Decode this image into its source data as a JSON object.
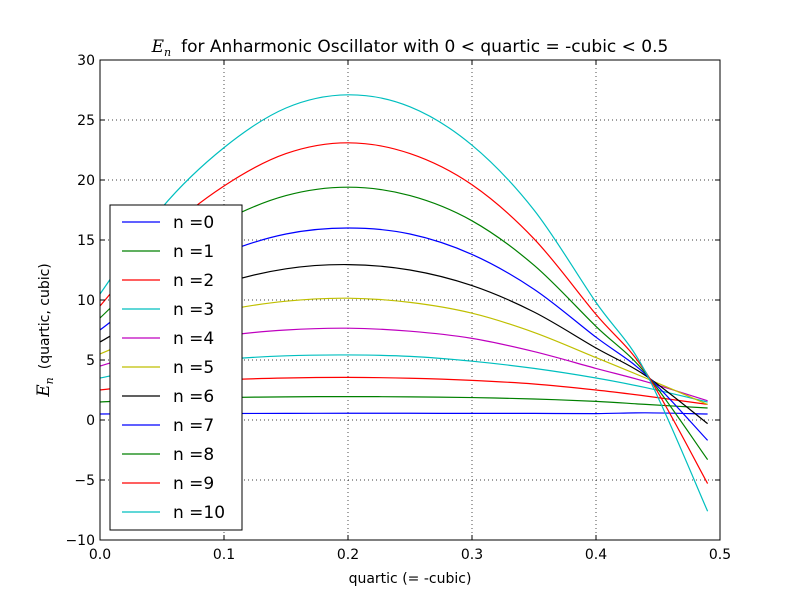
{
  "chart_data": {
    "type": "line",
    "title": {
      "math": "E",
      "math_sub": "n",
      "text": "for Anharmonic Oscillator with 0 < quartic = -cubic < 0.5"
    },
    "xlabel": "quartic (= -cubic)",
    "ylabel": {
      "math": "E",
      "math_sub": "n",
      "text": "(quartic, cubic)"
    },
    "xlim": [
      0.0,
      0.5
    ],
    "ylim": [
      -10,
      30
    ],
    "x_ticks": [
      0.0,
      0.1,
      0.2,
      0.3,
      0.4,
      0.5
    ],
    "x_tick_labels": [
      "0.0",
      "0.1",
      "0.2",
      "0.3",
      "0.4",
      "0.5"
    ],
    "y_ticks": [
      -10,
      -5,
      0,
      5,
      10,
      15,
      20,
      25,
      30
    ],
    "y_tick_labels": [
      "−10",
      "−5",
      "0",
      "5",
      "10",
      "15",
      "20",
      "25",
      "30"
    ],
    "grid": true,
    "legend_position": "lower-left",
    "x": [
      0.0,
      0.05,
      0.1,
      0.15,
      0.2,
      0.25,
      0.3,
      0.35,
      0.4,
      0.44,
      0.49
    ],
    "series": [
      {
        "name": "n =0",
        "color": "#0000ff",
        "values": [
          0.5,
          0.53,
          0.54,
          0.55,
          0.56,
          0.56,
          0.55,
          0.55,
          0.53,
          0.6,
          0.5
        ]
      },
      {
        "name": "n =1",
        "color": "#008000",
        "values": [
          1.5,
          1.75,
          1.87,
          1.93,
          1.95,
          1.93,
          1.87,
          1.75,
          1.55,
          1.3,
          1.0
        ]
      },
      {
        "name": "n =2",
        "color": "#ff0000",
        "values": [
          2.5,
          3.05,
          3.35,
          3.5,
          3.55,
          3.48,
          3.3,
          3.0,
          2.5,
          2.0,
          1.3
        ]
      },
      {
        "name": "n =3",
        "color": "#00bfbf",
        "values": [
          3.5,
          4.5,
          5.05,
          5.35,
          5.42,
          5.3,
          4.9,
          4.3,
          3.5,
          2.7,
          1.5
        ]
      },
      {
        "name": "n =4",
        "color": "#bf00bf",
        "values": [
          4.5,
          6.0,
          7.0,
          7.5,
          7.65,
          7.4,
          6.8,
          5.7,
          4.3,
          3.2,
          1.6
        ]
      },
      {
        "name": "n =5",
        "color": "#bfbf00",
        "values": [
          5.5,
          7.6,
          9.1,
          9.9,
          10.15,
          9.8,
          8.9,
          7.3,
          5.2,
          3.5,
          1.3
        ]
      },
      {
        "name": "n =6",
        "color": "#000000",
        "values": [
          6.5,
          9.4,
          11.4,
          12.6,
          12.95,
          12.5,
          11.2,
          9.0,
          6.0,
          3.7,
          -0.3
        ]
      },
      {
        "name": "n =7",
        "color": "#0000ff",
        "values": [
          7.5,
          11.3,
          13.9,
          15.5,
          16.0,
          15.5,
          13.8,
          10.9,
          6.9,
          3.8,
          -1.7
        ]
      },
      {
        "name": "n =8",
        "color": "#008000",
        "values": [
          8.5,
          13.3,
          16.6,
          18.7,
          19.4,
          18.7,
          16.6,
          12.9,
          7.8,
          3.9,
          -3.3
        ]
      },
      {
        "name": "n =9",
        "color": "#ff0000",
        "values": [
          9.5,
          15.4,
          19.5,
          22.2,
          23.1,
          22.2,
          19.6,
          15.1,
          8.8,
          4.0,
          -5.3
        ]
      },
      {
        "name": "n =10",
        "color": "#00bfbf",
        "values": [
          10.5,
          17.7,
          22.7,
          26.0,
          27.1,
          26.1,
          22.9,
          17.5,
          9.8,
          4.0,
          -7.6
        ]
      }
    ]
  }
}
